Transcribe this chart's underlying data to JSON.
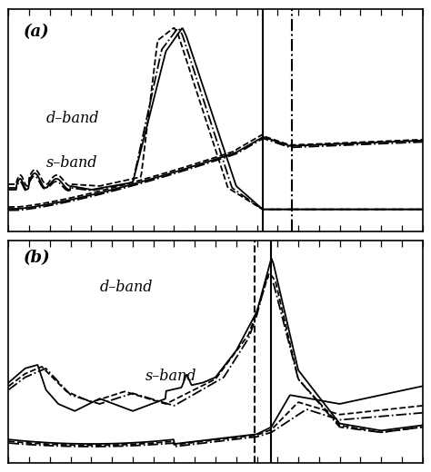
{
  "background_color": "#ffffff",
  "panel_a_label": "(a)",
  "panel_b_label": "(b)",
  "d_band_label": "d–band",
  "s_band_label": "s–band",
  "vline_solid_a": 0.615,
  "vline_dashdot_a": 0.685,
  "vline_solid_b": 0.635,
  "vline_dashed_b": 0.595
}
